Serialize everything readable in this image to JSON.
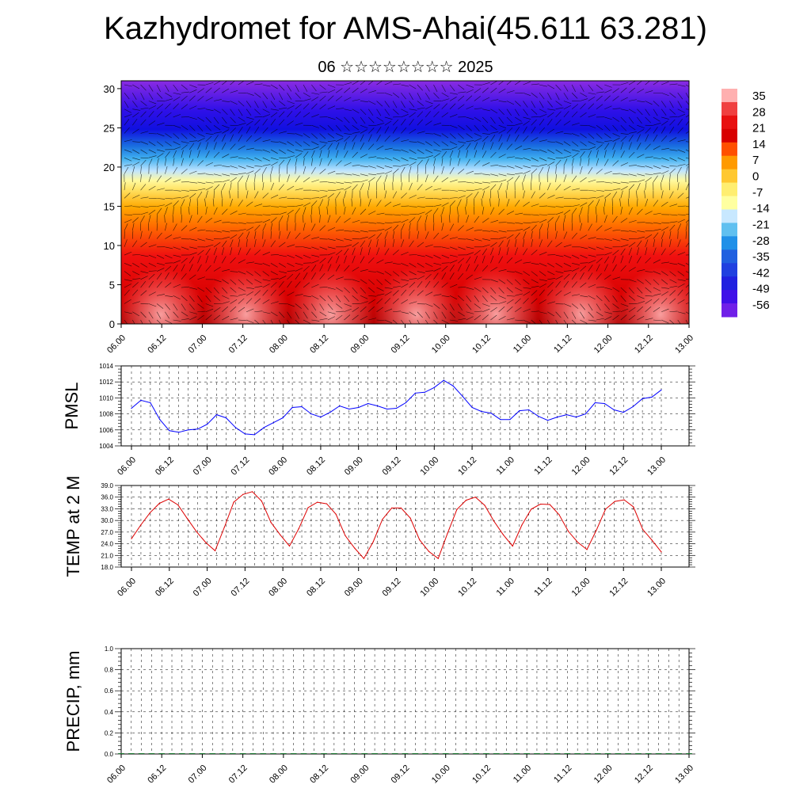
{
  "header": {
    "title": "Kazhydromet for AMS-Ahai(45.611 63.281)",
    "subtitle": "06 ☆☆☆☆☆☆☆☆ 2025"
  },
  "chart_data": [
    {
      "type": "heatmap",
      "title": "",
      "xlabel": "",
      "ylabel": "",
      "x_ticks": [
        "06.00",
        "06.12",
        "07.00",
        "07.12",
        "08.00",
        "08.12",
        "09.00",
        "09.12",
        "10.00",
        "10.12",
        "11.00",
        "11.12",
        "12.00",
        "12.12",
        "13.00"
      ],
      "y_ticks": [
        "0",
        "5",
        "10",
        "15",
        "20",
        "25",
        "30"
      ],
      "ylim": [
        0,
        31
      ],
      "colorbar_labels": [
        "35",
        "28",
        "21",
        "14",
        "7",
        "0",
        "-7",
        "-14",
        "-21",
        "-28",
        "-35",
        "-42",
        "-49",
        "-56"
      ],
      "colorbar_colors": [
        "#ffb6b6",
        "#e81010",
        "#ff7a00",
        "#ffd040",
        "#ffff80",
        "#b8e0ff",
        "#30a0e0",
        "#3040d0",
        "#8a2be2"
      ],
      "overlay": "wind barbs"
    },
    {
      "type": "line",
      "ylabel": "PMSL",
      "ylim": [
        1004,
        1014
      ],
      "y_ticks": [
        "1004",
        "1006",
        "1008",
        "1010",
        "1012",
        "1014"
      ],
      "x_ticks": [
        "06.00",
        "06.12",
        "07.00",
        "07.12",
        "08.00",
        "08.12",
        "09.00",
        "09.12",
        "10.00",
        "10.12",
        "11.00",
        "11.12",
        "12.00",
        "12.12",
        "13.00"
      ],
      "line_color": "#0000ff",
      "values": [
        1008.7,
        1009.7,
        1009.4,
        1007.3,
        1005.9,
        1005.7,
        1006.0,
        1006.1,
        1006.7,
        1007.9,
        1007.5,
        1006.3,
        1005.5,
        1005.4,
        1006.3,
        1006.9,
        1007.5,
        1008.8,
        1008.9,
        1008.0,
        1007.6,
        1008.2,
        1009.0,
        1008.6,
        1008.8,
        1009.3,
        1009.0,
        1008.6,
        1008.7,
        1009.4,
        1010.6,
        1010.7,
        1011.3,
        1012.2,
        1011.5,
        1010.2,
        1008.8,
        1008.3,
        1008.1,
        1007.3,
        1007.3,
        1008.4,
        1008.5,
        1007.7,
        1007.2,
        1007.6,
        1007.9,
        1007.6,
        1008.0,
        1009.4,
        1009.3,
        1008.5,
        1008.2,
        1008.9,
        1009.9,
        1010.1,
        1011.0
      ]
    },
    {
      "type": "line",
      "ylabel": "TEMP at 2 M",
      "ylim": [
        18,
        39
      ],
      "y_ticks": [
        "18.0",
        "21.0",
        "24.0",
        "27.0",
        "30.0",
        "33.0",
        "36.0",
        "39.0"
      ],
      "x_ticks": [
        "06.00",
        "06.12",
        "07.00",
        "07.12",
        "08.00",
        "08.12",
        "09.00",
        "09.12",
        "10.00",
        "10.12",
        "11.00",
        "11.12",
        "12.00",
        "12.12",
        "13.00"
      ],
      "line_color": "#dd0000",
      "values": [
        25.3,
        28.8,
        32.0,
        34.4,
        35.5,
        34.0,
        30.5,
        27.1,
        24.3,
        22.2,
        28.3,
        34.7,
        36.7,
        37.4,
        35.0,
        29.5,
        26.3,
        23.4,
        27.9,
        33.3,
        34.7,
        34.3,
        31.6,
        26.1,
        22.9,
        20.2,
        24.5,
        30.3,
        33.2,
        33.2,
        30.6,
        25.0,
        22.0,
        20.2,
        26.7,
        32.8,
        35.2,
        36.0,
        33.9,
        29.8,
        26.3,
        23.4,
        28.8,
        32.9,
        34.2,
        34.1,
        31.5,
        27.2,
        24.4,
        22.5,
        27.4,
        32.9,
        34.9,
        35.3,
        33.5,
        27.7,
        24.9,
        21.9
      ]
    },
    {
      "type": "bar",
      "ylabel": "PRECIP, mm",
      "ylim": [
        0,
        1
      ],
      "y_ticks": [
        "0.0",
        "0.2",
        "0.4",
        "0.6",
        "0.8",
        "1.0"
      ],
      "x_ticks": [
        "06.00",
        "06.12",
        "07.00",
        "07.12",
        "08.00",
        "08.12",
        "09.00",
        "09.12",
        "10.00",
        "10.12",
        "11.00",
        "11.12",
        "12.00",
        "12.12",
        "13.00"
      ],
      "values": [
        0,
        0,
        0,
        0,
        0,
        0,
        0,
        0,
        0,
        0,
        0,
        0,
        0,
        0,
        0,
        0,
        0,
        0,
        0,
        0,
        0,
        0,
        0,
        0,
        0,
        0,
        0,
        0,
        0,
        0,
        0,
        0,
        0,
        0,
        0,
        0,
        0,
        0,
        0,
        0,
        0,
        0,
        0,
        0,
        0,
        0,
        0,
        0,
        0,
        0,
        0,
        0,
        0,
        0,
        0,
        0,
        0
      ]
    }
  ]
}
